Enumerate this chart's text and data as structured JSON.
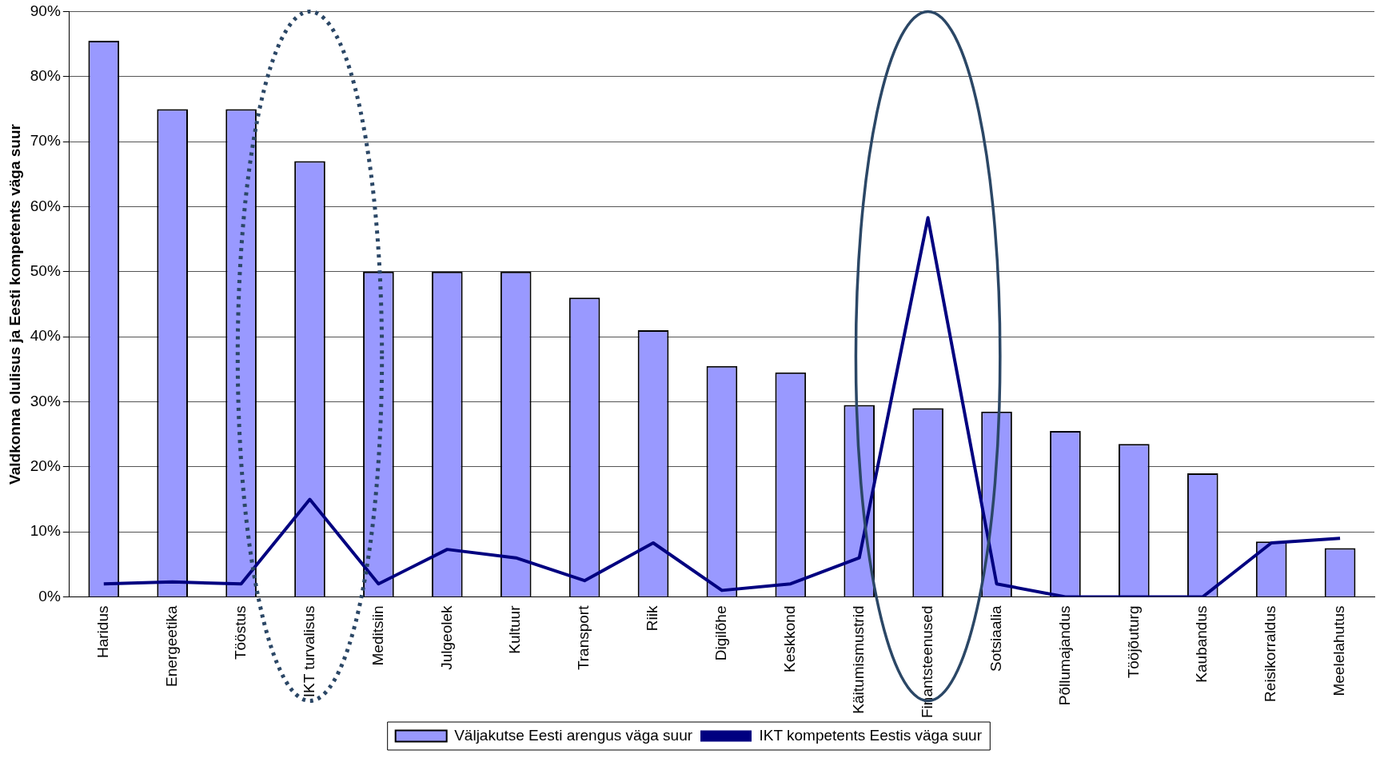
{
  "chart_data": {
    "type": "bar",
    "ylabel": "Valdkonna olulisus ja Eesti kompetents väga suur",
    "categories": [
      "Haridus",
      "Energeetika",
      "Tööstus",
      "IKT turvalisus",
      "Meditsiin",
      "Julgeolek",
      "Kultuur",
      "Transport",
      "Riik",
      "Digilõhe",
      "Keskkond",
      "Käitumismustrid",
      "Finantsteenused",
      "Sotsiaalia",
      "Põllumajandus",
      "Tööjõuturg",
      "Kaubandus",
      "Reisikorraldus",
      "Meelelahutus"
    ],
    "series": [
      {
        "name": "Väljakutse Eesti arengus väga suur",
        "color": "#9999ff",
        "values": [
          85.5,
          75,
          75,
          67,
          50,
          50,
          50,
          46,
          41,
          35.5,
          34.5,
          29.5,
          29,
          28.5,
          25.5,
          23.5,
          19,
          8.5,
          7.5
        ]
      },
      {
        "name": "IKT kompetents Eestis väga suur",
        "type": "line",
        "color": "#000080",
        "values": [
          2,
          2.3,
          2,
          15,
          2,
          7.3,
          6,
          2.5,
          8.3,
          1,
          2,
          6,
          58.3,
          2,
          0,
          0,
          0,
          8.3,
          9
        ]
      }
    ],
    "ylim": [
      0,
      90
    ],
    "yticks": [
      {
        "value": 0,
        "label": "0%"
      },
      {
        "value": 10,
        "label": "10%"
      },
      {
        "value": 20,
        "label": "20%"
      },
      {
        "value": 30,
        "label": "30%"
      },
      {
        "value": 40,
        "label": "40%"
      },
      {
        "value": 50,
        "label": "50%"
      },
      {
        "value": 60,
        "label": "60%"
      },
      {
        "value": 70,
        "label": "70%"
      },
      {
        "value": 80,
        "label": "80%"
      },
      {
        "value": 90,
        "label": "90%"
      }
    ],
    "grid": "y",
    "legend": "bottom",
    "marker": "none"
  }
}
